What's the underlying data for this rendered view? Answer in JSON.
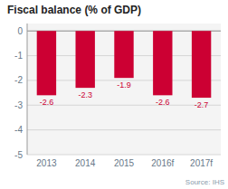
{
  "chart_data": {
    "type": "bar",
    "title": "Fiscal balance (% of GDP)",
    "categories": [
      "2013",
      "2014",
      "2015",
      "2016f",
      "2017f"
    ],
    "values": [
      -2.6,
      -2.3,
      -1.9,
      -2.6,
      -2.7
    ],
    "color": "#cc0033",
    "ylim": [
      -5,
      0.3
    ],
    "yticks": [
      0,
      -1,
      -2,
      -3,
      -4,
      -5
    ],
    "grid": true,
    "data_labels": true,
    "annotations": [
      "Source: IHS"
    ]
  }
}
